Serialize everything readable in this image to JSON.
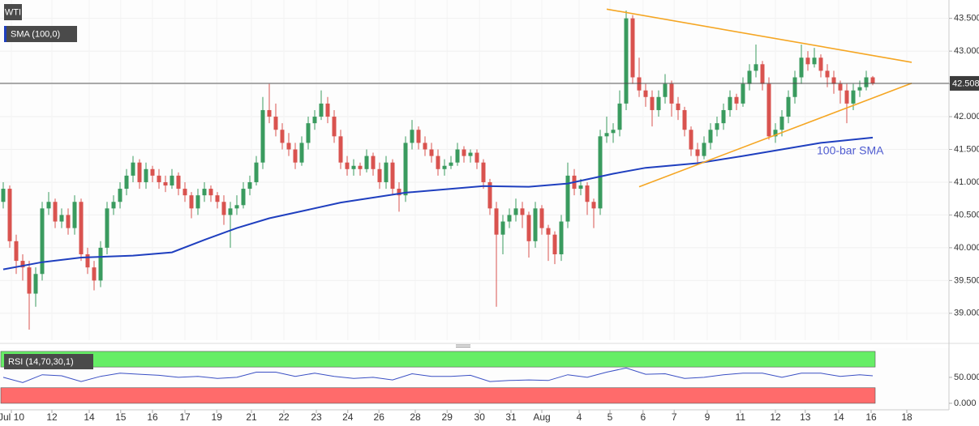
{
  "chart_data": {
    "type": "candlestick",
    "title": "WTI",
    "colors": {
      "up": "#3a9b5f",
      "down": "#d9534f"
    },
    "xlim": [
      -0.5,
      145.75
    ],
    "xticks": [
      {
        "value": 1.25,
        "label": "Jul 10"
      },
      {
        "value": 7.5,
        "label": "12"
      },
      {
        "value": 13.25,
        "label": "14"
      },
      {
        "value": 18.1,
        "label": "15"
      },
      {
        "value": 23,
        "label": "16"
      },
      {
        "value": 28,
        "label": "17"
      },
      {
        "value": 32.9,
        "label": "19"
      },
      {
        "value": 38.25,
        "label": "21"
      },
      {
        "value": 43.25,
        "label": "22"
      },
      {
        "value": 48.25,
        "label": "23"
      },
      {
        "value": 53.1,
        "label": "24"
      },
      {
        "value": 57.9,
        "label": "26"
      },
      {
        "value": 63.5,
        "label": "28"
      },
      {
        "value": 68.4,
        "label": "29"
      },
      {
        "value": 73.4,
        "label": "30"
      },
      {
        "value": 78.25,
        "label": "31"
      },
      {
        "value": 83,
        "label": "Aug"
      },
      {
        "value": 88.75,
        "label": "4"
      },
      {
        "value": 93.5,
        "label": "5"
      },
      {
        "value": 98.6,
        "label": "6"
      },
      {
        "value": 103.4,
        "label": "7"
      },
      {
        "value": 108.5,
        "label": "9"
      },
      {
        "value": 113.6,
        "label": "11"
      },
      {
        "value": 119,
        "label": "12"
      },
      {
        "value": 123.6,
        "label": "13"
      },
      {
        "value": 128.75,
        "label": "14"
      },
      {
        "value": 133.75,
        "label": "16"
      },
      {
        "value": 139.25,
        "label": "18"
      }
    ],
    "ylim": [
      38.59,
      43.78
    ],
    "yticks": [
      {
        "value": 39,
        "label": "39.000"
      },
      {
        "value": 39.5,
        "label": "39.500"
      },
      {
        "value": 40,
        "label": "40.000"
      },
      {
        "value": 40.5,
        "label": "40.500"
      },
      {
        "value": 41,
        "label": "41.000"
      },
      {
        "value": 41.5,
        "label": "41.500"
      },
      {
        "value": 42,
        "label": "42.000"
      },
      {
        "value": 42.5,
        "label": "42.500"
      },
      {
        "value": 43,
        "label": "43.000"
      },
      {
        "value": 43.5,
        "label": "43.500"
      }
    ],
    "grid": true,
    "last_price": 42.508,
    "ohlc": [
      [
        40.7,
        41.0,
        40.6,
        40.9
      ],
      [
        40.9,
        40.95,
        40.0,
        40.1
      ],
      [
        40.1,
        40.2,
        39.6,
        39.8
      ],
      [
        39.8,
        39.9,
        39.5,
        39.7
      ],
      [
        39.7,
        39.8,
        38.75,
        39.3
      ],
      [
        39.3,
        39.7,
        39.1,
        39.6
      ],
      [
        39.6,
        40.7,
        39.5,
        40.6
      ],
      [
        40.6,
        40.85,
        40.5,
        40.7
      ],
      [
        40.7,
        40.75,
        40.3,
        40.4
      ],
      [
        40.4,
        40.6,
        40.3,
        40.5
      ],
      [
        40.5,
        40.6,
        40.2,
        40.3
      ],
      [
        40.3,
        40.8,
        40.2,
        40.7
      ],
      [
        40.7,
        40.75,
        39.8,
        39.9
      ],
      [
        39.9,
        40.0,
        39.6,
        39.7
      ],
      [
        39.7,
        39.8,
        39.35,
        39.5
      ],
      [
        39.5,
        40.1,
        39.4,
        40.0
      ],
      [
        40.0,
        40.7,
        39.9,
        40.6
      ],
      [
        40.6,
        40.8,
        40.5,
        40.7
      ],
      [
        40.7,
        41.0,
        40.6,
        40.9
      ],
      [
        40.9,
        41.2,
        40.8,
        41.1
      ],
      [
        41.1,
        41.4,
        41.0,
        41.3
      ],
      [
        41.3,
        41.35,
        40.9,
        41.0
      ],
      [
        41.0,
        41.3,
        40.9,
        41.2
      ],
      [
        41.2,
        41.25,
        41.0,
        41.1
      ],
      [
        41.1,
        41.2,
        40.9,
        41.0
      ],
      [
        41.0,
        41.1,
        40.85,
        40.95
      ],
      [
        40.95,
        41.2,
        40.9,
        41.1
      ],
      [
        41.1,
        41.15,
        40.8,
        40.9
      ],
      [
        40.9,
        41.0,
        40.7,
        40.8
      ],
      [
        40.8,
        40.85,
        40.45,
        40.6
      ],
      [
        40.6,
        40.9,
        40.5,
        40.8
      ],
      [
        40.8,
        41.0,
        40.7,
        40.9
      ],
      [
        40.9,
        40.95,
        40.7,
        40.8
      ],
      [
        40.8,
        40.85,
        40.6,
        40.7
      ],
      [
        40.7,
        40.8,
        40.35,
        40.5
      ],
      [
        40.5,
        40.7,
        40.0,
        40.6
      ],
      [
        40.6,
        40.8,
        40.5,
        40.65
      ],
      [
        40.65,
        41.0,
        40.6,
        40.9
      ],
      [
        40.9,
        41.1,
        40.8,
        41.0
      ],
      [
        41.0,
        41.4,
        40.95,
        41.3
      ],
      [
        41.3,
        42.3,
        41.2,
        42.1
      ],
      [
        42.1,
        42.5,
        41.9,
        42.0
      ],
      [
        42.0,
        42.2,
        41.7,
        41.8
      ],
      [
        41.8,
        41.9,
        41.5,
        41.6
      ],
      [
        41.6,
        41.75,
        41.4,
        41.5
      ],
      [
        41.5,
        41.6,
        41.2,
        41.3
      ],
      [
        41.3,
        41.7,
        41.25,
        41.6
      ],
      [
        41.6,
        42.0,
        41.5,
        41.9
      ],
      [
        41.9,
        42.1,
        41.8,
        42.0
      ],
      [
        42.0,
        42.4,
        41.95,
        42.2
      ],
      [
        42.2,
        42.3,
        41.9,
        42.0
      ],
      [
        42.0,
        42.1,
        41.6,
        41.7
      ],
      [
        41.7,
        41.8,
        41.2,
        41.3
      ],
      [
        41.3,
        41.4,
        41.1,
        41.2
      ],
      [
        41.2,
        41.35,
        41.1,
        41.25
      ],
      [
        41.25,
        41.3,
        41.1,
        41.2
      ],
      [
        41.2,
        41.5,
        41.15,
        41.4
      ],
      [
        41.4,
        41.45,
        41.1,
        41.2
      ],
      [
        41.2,
        41.3,
        40.9,
        41.0
      ],
      [
        41.0,
        41.4,
        40.9,
        41.3
      ],
      [
        41.3,
        41.35,
        40.8,
        40.9
      ],
      [
        40.9,
        41.0,
        40.55,
        40.8
      ],
      [
        40.8,
        41.7,
        40.7,
        41.6
      ],
      [
        41.6,
        41.95,
        41.5,
        41.8
      ],
      [
        41.8,
        41.85,
        41.5,
        41.6
      ],
      [
        41.6,
        41.7,
        41.4,
        41.5
      ],
      [
        41.5,
        41.6,
        41.3,
        41.4
      ],
      [
        41.4,
        41.5,
        41.1,
        41.2
      ],
      [
        41.2,
        41.35,
        41.1,
        41.25
      ],
      [
        41.25,
        41.4,
        41.2,
        41.3
      ],
      [
        41.3,
        41.6,
        41.25,
        41.5
      ],
      [
        41.5,
        41.55,
        41.3,
        41.4
      ],
      [
        41.4,
        41.5,
        41.3,
        41.45
      ],
      [
        41.45,
        41.5,
        41.2,
        41.3
      ],
      [
        41.3,
        41.35,
        40.9,
        41.0
      ],
      [
        41.0,
        41.05,
        40.5,
        40.6
      ],
      [
        40.6,
        40.7,
        39.1,
        40.2
      ],
      [
        40.2,
        40.5,
        39.9,
        40.4
      ],
      [
        40.4,
        40.6,
        40.3,
        40.5
      ],
      [
        40.5,
        40.75,
        40.4,
        40.6
      ],
      [
        40.6,
        40.7,
        40.3,
        40.5
      ],
      [
        40.5,
        40.55,
        39.85,
        40.1
      ],
      [
        40.1,
        40.7,
        40.0,
        40.6
      ],
      [
        40.6,
        40.65,
        40.2,
        40.3
      ],
      [
        40.3,
        40.35,
        39.8,
        40.2
      ],
      [
        40.2,
        40.25,
        39.75,
        39.9
      ],
      [
        39.9,
        40.5,
        39.8,
        40.4
      ],
      [
        40.4,
        41.3,
        40.3,
        41.1
      ],
      [
        41.1,
        41.2,
        40.8,
        40.9
      ],
      [
        40.9,
        41.05,
        40.8,
        40.95
      ],
      [
        40.95,
        41.0,
        40.5,
        40.7
      ],
      [
        40.7,
        40.75,
        40.3,
        40.6
      ],
      [
        40.6,
        41.8,
        40.5,
        41.7
      ],
      [
        41.7,
        42.0,
        41.6,
        41.75
      ],
      [
        41.75,
        41.9,
        41.6,
        41.8
      ],
      [
        41.8,
        42.4,
        41.7,
        42.2
      ],
      [
        42.2,
        43.62,
        42.1,
        43.5
      ],
      [
        43.5,
        43.55,
        42.5,
        42.6
      ],
      [
        42.6,
        42.9,
        42.3,
        42.4
      ],
      [
        42.4,
        42.5,
        42.15,
        42.3
      ],
      [
        42.3,
        42.4,
        41.85,
        42.1
      ],
      [
        42.1,
        42.4,
        42.0,
        42.3
      ],
      [
        42.3,
        42.65,
        42.2,
        42.5
      ],
      [
        42.5,
        42.55,
        42.0,
        42.2
      ],
      [
        42.2,
        42.3,
        41.95,
        42.1
      ],
      [
        42.1,
        42.15,
        41.7,
        41.8
      ],
      [
        41.8,
        41.85,
        41.4,
        41.5
      ],
      [
        41.5,
        41.6,
        41.3,
        41.4
      ],
      [
        41.4,
        41.7,
        41.35,
        41.6
      ],
      [
        41.6,
        41.9,
        41.5,
        41.8
      ],
      [
        41.8,
        42.0,
        41.7,
        41.9
      ],
      [
        41.9,
        42.2,
        41.8,
        42.1
      ],
      [
        42.1,
        42.4,
        42.0,
        42.3
      ],
      [
        42.3,
        42.35,
        42.1,
        42.2
      ],
      [
        42.2,
        42.6,
        42.15,
        42.5
      ],
      [
        42.5,
        42.8,
        42.4,
        42.7
      ],
      [
        42.7,
        43.1,
        42.6,
        42.8
      ],
      [
        42.8,
        42.85,
        42.4,
        42.5
      ],
      [
        42.5,
        42.6,
        41.65,
        41.7
      ],
      [
        41.7,
        41.9,
        41.6,
        41.8
      ],
      [
        41.8,
        42.1,
        41.7,
        42.0
      ],
      [
        42.0,
        42.4,
        41.9,
        42.3
      ],
      [
        42.3,
        42.7,
        42.2,
        42.6
      ],
      [
        42.6,
        43.1,
        42.5,
        42.9
      ],
      [
        42.9,
        43.0,
        42.7,
        42.8
      ],
      [
        42.8,
        43.05,
        42.75,
        42.9
      ],
      [
        42.9,
        42.95,
        42.6,
        42.7
      ],
      [
        42.7,
        42.8,
        42.45,
        42.6
      ],
      [
        42.6,
        42.7,
        42.35,
        42.5
      ],
      [
        42.5,
        42.55,
        42.2,
        42.4
      ],
      [
        42.4,
        42.5,
        41.9,
        42.2
      ],
      [
        42.2,
        42.5,
        42.1,
        42.4
      ],
      [
        42.4,
        42.55,
        42.3,
        42.45
      ],
      [
        42.45,
        42.7,
        42.4,
        42.6
      ],
      [
        42.6,
        42.62,
        42.48,
        42.51
      ]
    ],
    "sma": {
      "name": "SMA (100,0)",
      "color": "#1f3fbf",
      "x": [
        0,
        6,
        12,
        20,
        26,
        31,
        36,
        41,
        47,
        52,
        62,
        74,
        81,
        87,
        94,
        99,
        107,
        114,
        120,
        126,
        134
      ],
      "values": [
        39.67,
        39.78,
        39.85,
        39.88,
        39.93,
        40.12,
        40.3,
        40.45,
        40.58,
        40.69,
        40.84,
        40.94,
        40.93,
        40.98,
        41.13,
        41.22,
        41.29,
        41.4,
        41.5,
        41.6,
        41.68
      ]
    },
    "annotation": "100-bar SMA",
    "trendlines": [
      {
        "color": "#f5a623",
        "x": [
          93,
          140
        ],
        "values": [
          43.64,
          42.83
        ]
      },
      {
        "color": "#f5a623",
        "x": [
          98,
          140
        ],
        "values": [
          40.93,
          42.51
        ]
      }
    ],
    "rsi": {
      "name": "RSI (14,70,30,1)",
      "color": "#3a4fc4",
      "ylim": [
        -11,
        103
      ],
      "yticks": [
        {
          "value": 50,
          "label": "50.000"
        },
        {
          "value": 0,
          "label": "0.000"
        }
      ],
      "overbought": [
        70,
        100
      ],
      "oversold": [
        0,
        30
      ],
      "x": [
        0,
        3,
        6,
        9,
        12,
        15,
        18,
        21,
        24,
        27,
        30,
        33,
        36,
        39,
        42,
        45,
        48,
        51,
        54,
        57,
        60,
        63,
        66,
        69,
        72,
        75,
        78,
        81,
        84,
        87,
        90,
        93,
        96,
        99,
        102,
        105,
        108,
        111,
        114,
        117,
        120,
        123,
        126,
        129,
        132,
        134
      ],
      "values": [
        50,
        40,
        55,
        53,
        42,
        52,
        58,
        56,
        54,
        50,
        52,
        48,
        50,
        60,
        60,
        52,
        58,
        52,
        48,
        50,
        45,
        57,
        52,
        52,
        54,
        42,
        44,
        45,
        44,
        55,
        50,
        60,
        68,
        56,
        57,
        48,
        50,
        55,
        58,
        58,
        50,
        58,
        58,
        52,
        55,
        53
      ]
    }
  }
}
